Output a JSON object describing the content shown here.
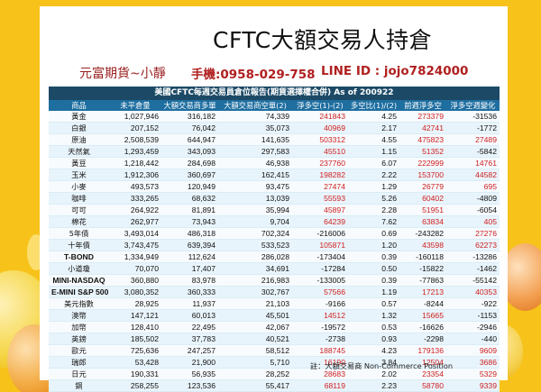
{
  "title": "CFTC大額交易人持倉",
  "brand": "元富期貨~小靜",
  "phone": "手機:0958-029-758",
  "line_id": "LINE ID : jojo7824000",
  "table_title": "美國CFTC每週交易員倉位報告(期貨選擇權合併) As of  200922",
  "columns": [
    "商品",
    "未平倉量",
    "大額交易商多單",
    "大額交易商空單(2)",
    "淨多空(1)-(2)",
    "多空比(1)/(2)",
    "前週淨多空",
    "淨多空週變化"
  ],
  "rows": [
    {
      "name": "黃金",
      "oi": "1,027,946",
      "long": "316,182",
      "short": "74,339",
      "net": "241843",
      "ratio": "4.25",
      "prev": "273379",
      "chg": "-31536"
    },
    {
      "name": "白銀",
      "oi": "207,152",
      "long": "76,042",
      "short": "35,073",
      "net": "40969",
      "ratio": "2.17",
      "prev": "42741",
      "chg": "-1772"
    },
    {
      "name": "原油",
      "oi": "2,508,539",
      "long": "644,947",
      "short": "141,635",
      "net": "503312",
      "ratio": "4.55",
      "prev": "475823",
      "chg": "27489"
    },
    {
      "name": "天然氣",
      "oi": "1,293,459",
      "long": "343,093",
      "short": "297,583",
      "net": "45510",
      "ratio": "1.15",
      "prev": "51352",
      "chg": "-5842"
    },
    {
      "name": "黃豆",
      "oi": "1,218,442",
      "long": "284,698",
      "short": "46,938",
      "net": "237760",
      "ratio": "6.07",
      "prev": "222999",
      "chg": "14761"
    },
    {
      "name": "玉米",
      "oi": "1,912,306",
      "long": "360,697",
      "short": "162,415",
      "net": "198282",
      "ratio": "2.22",
      "prev": "153700",
      "chg": "44582"
    },
    {
      "name": "小麥",
      "oi": "493,573",
      "long": "120,949",
      "short": "93,475",
      "net": "27474",
      "ratio": "1.29",
      "prev": "26779",
      "chg": "695"
    },
    {
      "name": "咖啡",
      "oi": "333,265",
      "long": "68,632",
      "short": "13,039",
      "net": "55593",
      "ratio": "5.26",
      "prev": "60402",
      "chg": "-4809"
    },
    {
      "name": "可可",
      "oi": "264,922",
      "long": "81,891",
      "short": "35,994",
      "net": "45897",
      "ratio": "2.28",
      "prev": "51951",
      "chg": "-6054"
    },
    {
      "name": "棉花",
      "oi": "262,977",
      "long": "73,943",
      "short": "9,704",
      "net": "64239",
      "ratio": "7.62",
      "prev": "63834",
      "chg": "405"
    },
    {
      "name": "5年債",
      "oi": "3,493,014",
      "long": "486,318",
      "short": "702,324",
      "net": "-216006",
      "ratio": "0.69",
      "prev": "-243282",
      "chg": "27276"
    },
    {
      "name": "十年債",
      "oi": "3,743,475",
      "long": "639,394",
      "short": "533,523",
      "net": "105871",
      "ratio": "1.20",
      "prev": "43598",
      "chg": "62273"
    },
    {
      "name": "T-BOND",
      "oi": "1,334,949",
      "long": "112,624",
      "short": "286,028",
      "net": "-173404",
      "ratio": "0.39",
      "prev": "-160118",
      "chg": "-13286"
    },
    {
      "name": "小道瓊",
      "oi": "70,070",
      "long": "17,407",
      "short": "34,691",
      "net": "-17284",
      "ratio": "0.50",
      "prev": "-15822",
      "chg": "-1462"
    },
    {
      "name": "MINI-NASDAQ",
      "oi": "360,880",
      "long": "83,978",
      "short": "216,983",
      "net": "-133005",
      "ratio": "0.39",
      "prev": "-77863",
      "chg": "-55142"
    },
    {
      "name": "E-MINI S&P 500",
      "oi": "3,080,352",
      "long": "360,333",
      "short": "302,767",
      "net": "57566",
      "ratio": "1.19",
      "prev": "17213",
      "chg": "40353"
    },
    {
      "name": "美元指數",
      "oi": "28,925",
      "long": "11,937",
      "short": "21,103",
      "net": "-9166",
      "ratio": "0.57",
      "prev": "-8244",
      "chg": "-922"
    },
    {
      "name": "澳幣",
      "oi": "147,121",
      "long": "60,013",
      "short": "45,501",
      "net": "14512",
      "ratio": "1.32",
      "prev": "15665",
      "chg": "-1153"
    },
    {
      "name": "加幣",
      "oi": "128,410",
      "long": "22,495",
      "short": "42,067",
      "net": "-19572",
      "ratio": "0.53",
      "prev": "-16626",
      "chg": "-2946"
    },
    {
      "name": "英鎊",
      "oi": "185,502",
      "long": "37,783",
      "short": "40,521",
      "net": "-2738",
      "ratio": "0.93",
      "prev": "-2298",
      "chg": "-440"
    },
    {
      "name": "歐元",
      "oi": "725,636",
      "long": "247,257",
      "short": "58,512",
      "net": "188745",
      "ratio": "4.23",
      "prev": "179136",
      "chg": "9609"
    },
    {
      "name": "瑞郎",
      "oi": "53,428",
      "long": "21,900",
      "short": "5,710",
      "net": "16190",
      "ratio": "3.84",
      "prev": "12504",
      "chg": "3686"
    },
    {
      "name": "日元",
      "oi": "190,331",
      "long": "56,935",
      "short": "28,252",
      "net": "28683",
      "ratio": "2.02",
      "prev": "23354",
      "chg": "5329"
    },
    {
      "name": "銅",
      "oi": "258,255",
      "long": "123,536",
      "short": "55,417",
      "net": "68119",
      "ratio": "2.23",
      "prev": "58780",
      "chg": "9339"
    }
  ],
  "footnote": "註：大額交易商 Non-Commerce Position",
  "colors": {
    "background": "#f7c31a",
    "header_dark": "#1c4a66",
    "header": "#1e6ea0",
    "positive": "#d02020",
    "brand": "#9a2020"
  }
}
